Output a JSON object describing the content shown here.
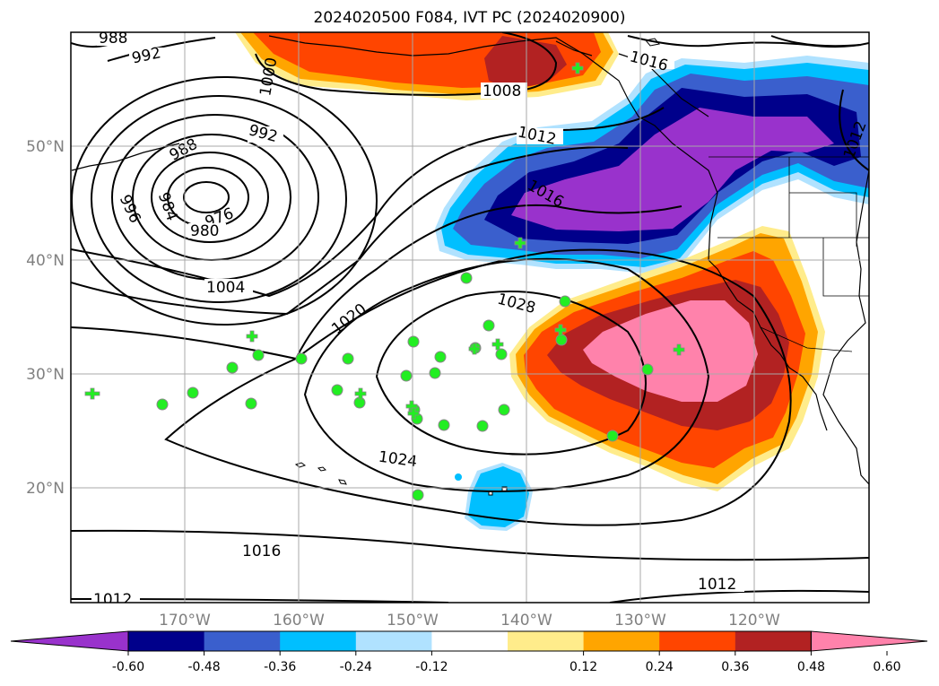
{
  "title": "2024020500 F084, IVT PC (2024020900)",
  "map": {
    "lat_labels": [
      "50°N",
      "40°N",
      "30°N",
      "20°N"
    ],
    "lon_labels": [
      "170°W",
      "160°W",
      "150°W",
      "140°W",
      "130°W",
      "120°W"
    ],
    "grid": true
  },
  "isobars": [
    {
      "value": "988"
    },
    {
      "value": "992"
    },
    {
      "value": "1000"
    },
    {
      "value": "1008"
    },
    {
      "value": "1016"
    },
    {
      "value": "988"
    },
    {
      "value": "992"
    },
    {
      "value": "1012"
    },
    {
      "value": "1012"
    },
    {
      "value": "976"
    },
    {
      "value": "984"
    },
    {
      "value": "996"
    },
    {
      "value": "980"
    },
    {
      "value": "1016"
    },
    {
      "value": "1004"
    },
    {
      "value": "1020"
    },
    {
      "value": "1028"
    },
    {
      "value": "1024"
    },
    {
      "value": "1016"
    },
    {
      "value": "1012"
    },
    {
      "value": "1012"
    }
  ],
  "colorbar": {
    "ticks": [
      "-0.60",
      "-0.48",
      "-0.36",
      "-0.24",
      "-0.12",
      "0.12",
      "0.24",
      "0.36",
      "0.48",
      "0.60"
    ],
    "colors": [
      "#9932cc",
      "#00008b",
      "#3a5fcd",
      "#00bfff",
      "#b0e2ff",
      "#ffffff",
      "#ffec8b",
      "#ffa500",
      "#ff4500",
      "#b22222",
      "#ff82ab"
    ]
  },
  "colors": {
    "marker_fill": "#22ee22",
    "marker_edge": "#888888"
  }
}
